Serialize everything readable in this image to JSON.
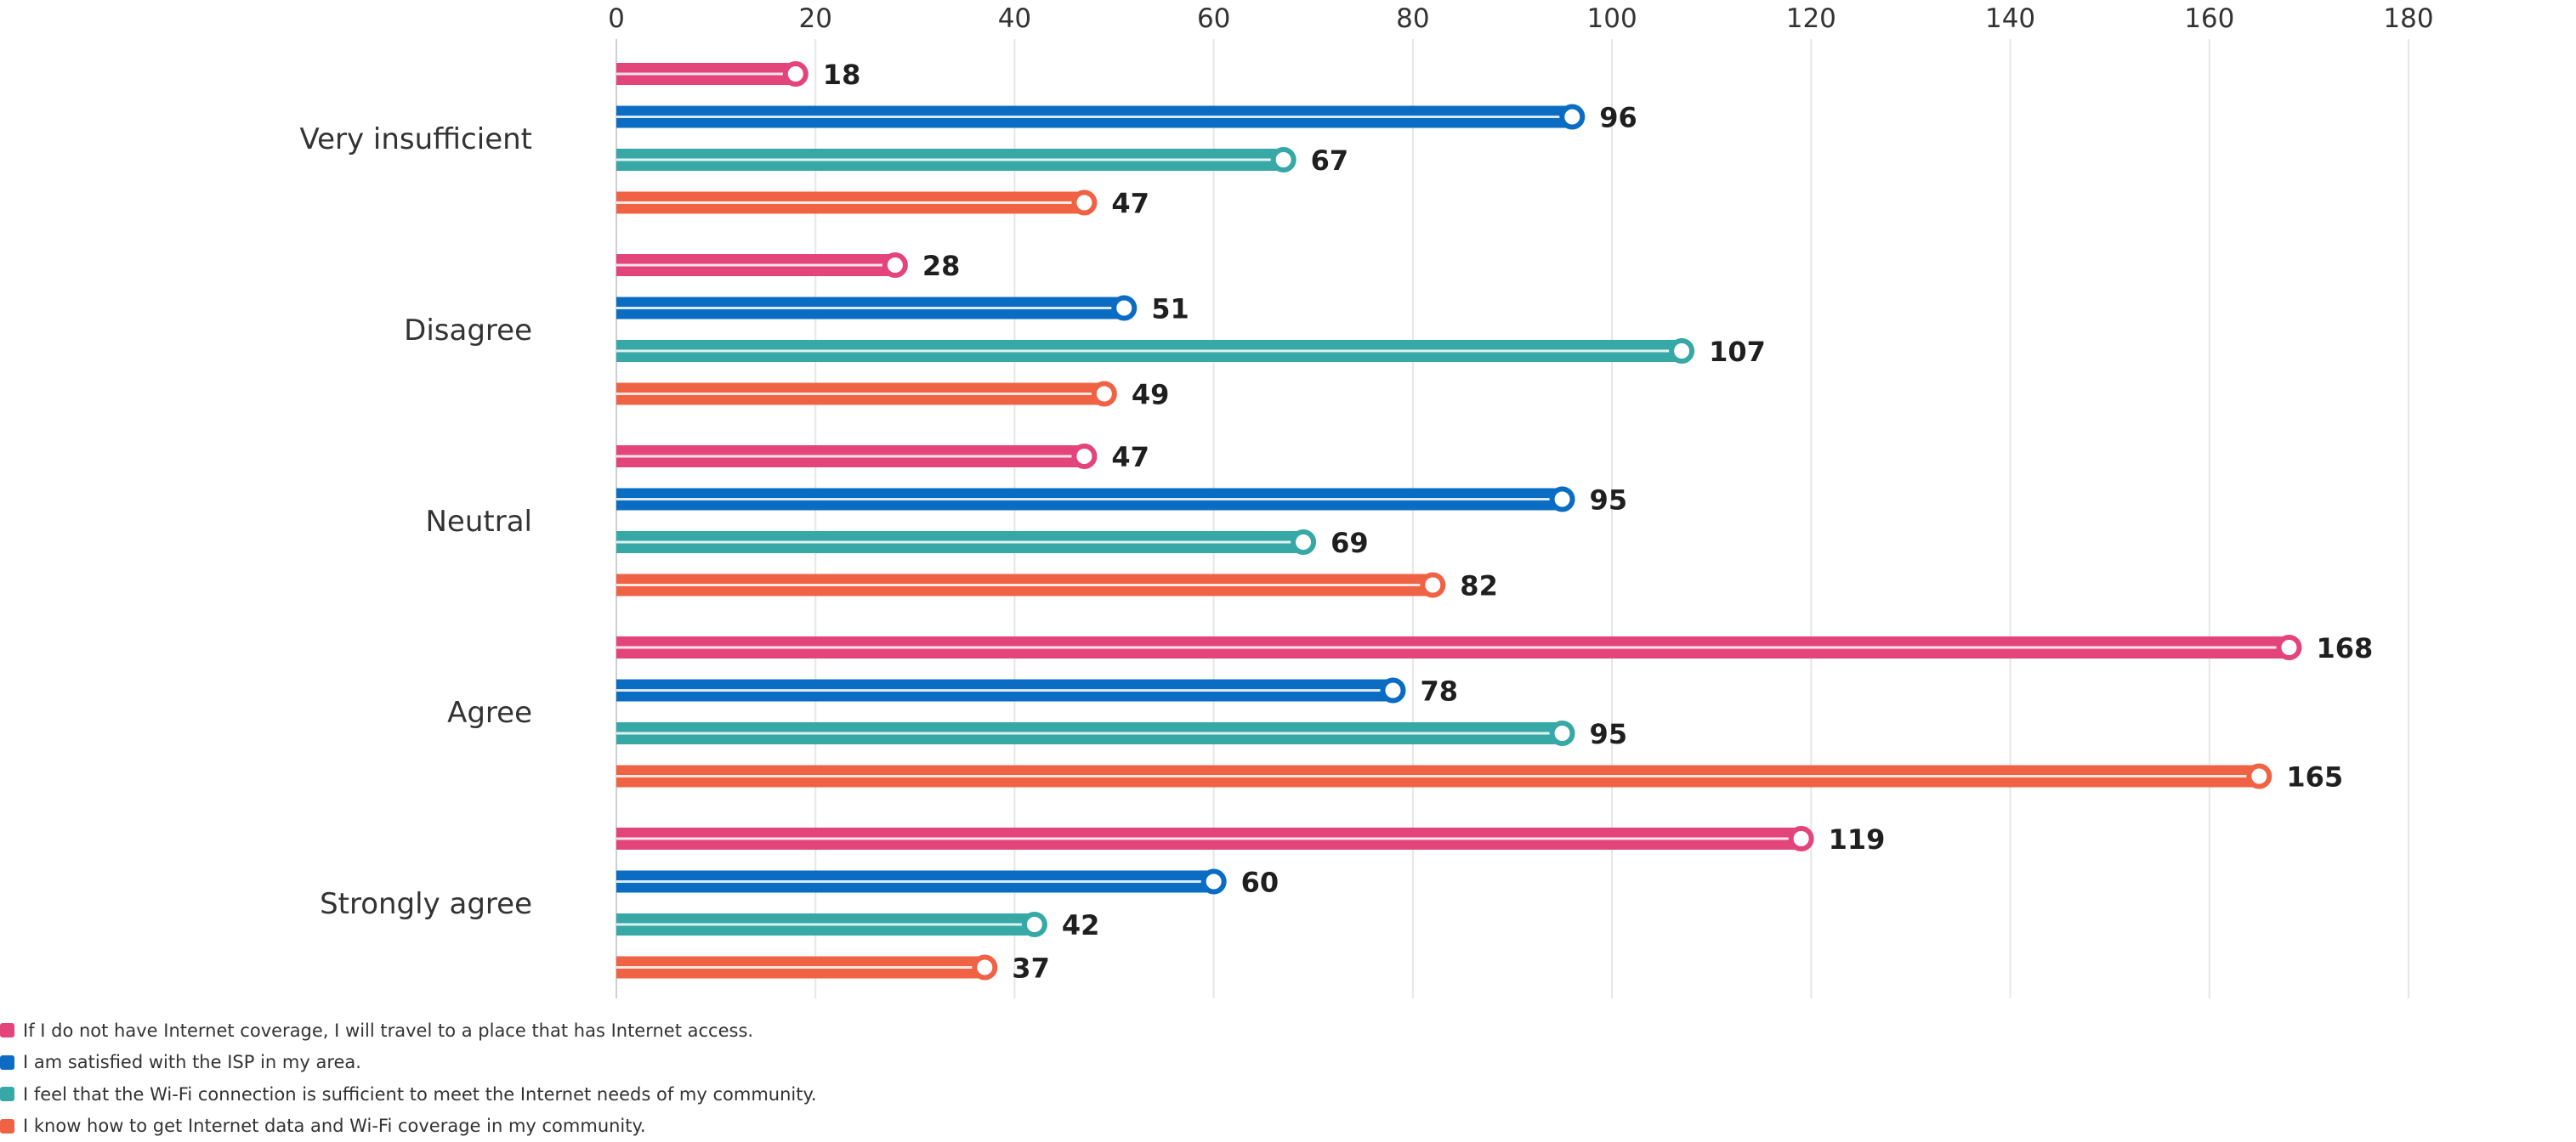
{
  "chart_data": {
    "type": "bar",
    "orientation": "horizontal",
    "categories": [
      "Very insufficient",
      "Disagree",
      "Neutral",
      "Agree",
      "Strongly agree"
    ],
    "series": [
      {
        "name": "If I do not have Internet coverage, I will travel to a place that has Internet access.",
        "color": "#e3457a",
        "values": [
          18,
          28,
          47,
          168,
          119
        ]
      },
      {
        "name": "I am satisfied with the ISP in my area.",
        "color": "#0a6cc2",
        "values": [
          96,
          51,
          95,
          78,
          60
        ]
      },
      {
        "name": "I feel that the Wi-Fi connection is sufficient to meet the Internet needs of my community.",
        "color": "#36a8a6",
        "values": [
          67,
          107,
          69,
          95,
          42
        ]
      },
      {
        "name": "I know how to get Internet data and Wi-Fi coverage in my community.",
        "color": "#ef6244",
        "values": [
          47,
          49,
          82,
          165,
          37
        ]
      }
    ],
    "xlim": [
      0,
      180
    ],
    "xticks": [
      "0",
      "20",
      "40",
      "60",
      "80",
      "100",
      "120",
      "140",
      "160",
      "180"
    ],
    "x_axis_position": "top",
    "grid": true,
    "legend_position": "bottom-left",
    "data_labels": true
  }
}
